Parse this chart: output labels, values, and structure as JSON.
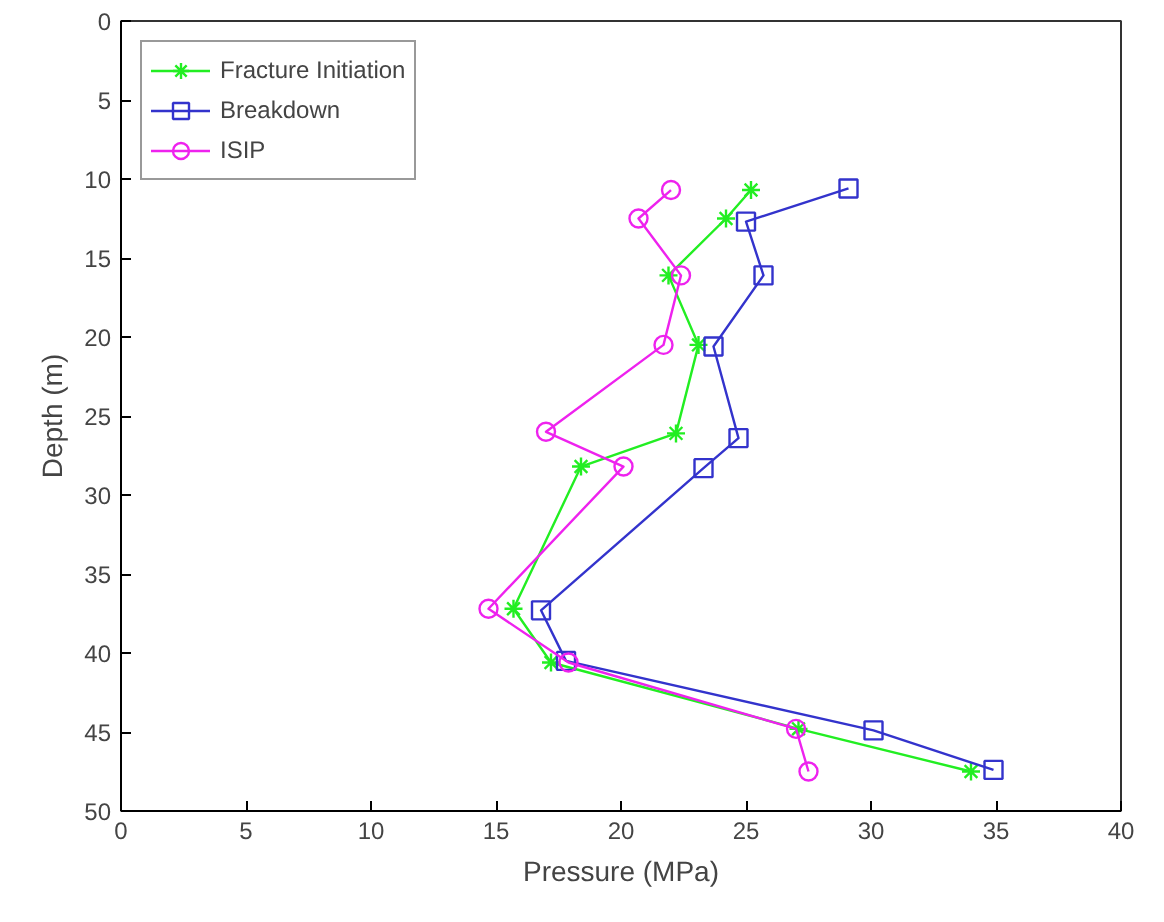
{
  "chart_data": {
    "type": "line",
    "xlabel": "Pressure (MPa)",
    "ylabel": "Depth (m)",
    "xlim": [
      0,
      40
    ],
    "ylim": [
      50,
      0
    ],
    "xticks": [
      0,
      5,
      10,
      15,
      20,
      25,
      30,
      35,
      40
    ],
    "yticks": [
      0,
      5,
      10,
      15,
      20,
      25,
      30,
      35,
      40,
      45,
      50
    ],
    "grid": false,
    "legend": "top left",
    "line_style": "solid",
    "series": [
      {
        "name": "Fracture Initiation",
        "color": "#22ee22",
        "marker": "cross",
        "x": [
          25.2,
          24.2,
          21.9,
          23.1,
          22.2,
          18.4,
          15.7,
          17.2,
          27.1,
          34.0
        ],
        "values": [
          10.7,
          12.5,
          16.1,
          20.5,
          26.1,
          28.2,
          37.2,
          40.6,
          44.8,
          47.5
        ]
      },
      {
        "name": "Breakdown",
        "color": "#3333cc",
        "marker": "square",
        "x": [
          29.1,
          25.0,
          25.7,
          23.7,
          24.7,
          23.3,
          16.8,
          17.8,
          30.1,
          34.9
        ],
        "values": [
          10.6,
          12.7,
          16.1,
          20.6,
          26.4,
          28.3,
          37.3,
          40.5,
          44.9,
          47.4
        ]
      },
      {
        "name": "ISIP",
        "color": "#ee22ee",
        "marker": "circle",
        "x": [
          22.0,
          20.7,
          22.4,
          21.7,
          17.0,
          20.1,
          14.7,
          17.9,
          27.0,
          27.5
        ],
        "values": [
          10.7,
          12.5,
          16.1,
          20.5,
          26.0,
          28.2,
          37.2,
          40.6,
          44.8,
          47.5
        ]
      }
    ]
  }
}
